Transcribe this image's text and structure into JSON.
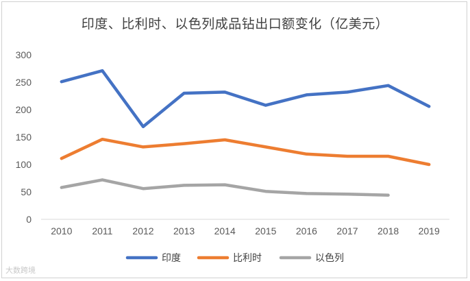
{
  "chart_data": {
    "type": "line",
    "title": "印度、比利时、以色列成品钻出口额变化（亿美元）",
    "categories": [
      "2010",
      "2011",
      "2012",
      "2013",
      "2014",
      "2015",
      "2016",
      "2017",
      "2018",
      "2019"
    ],
    "ylim": [
      0,
      300
    ],
    "yticks": [
      0,
      50,
      100,
      150,
      200,
      250,
      300
    ],
    "grid": false,
    "legend_position": "bottom",
    "series": [
      {
        "name": "印度",
        "color": "#4472C4",
        "values": [
          251,
          271,
          169,
          230,
          232,
          208,
          227,
          232,
          244,
          206
        ]
      },
      {
        "name": "比利时",
        "color": "#ED7D31",
        "values": [
          111,
          146,
          132,
          138,
          145,
          132,
          119,
          115,
          115,
          100
        ]
      },
      {
        "name": "以色列",
        "color": "#A5A5A5",
        "values": [
          58,
          72,
          56,
          62,
          63,
          51,
          47,
          46,
          44,
          null
        ]
      }
    ]
  },
  "watermark": "大数跨境"
}
